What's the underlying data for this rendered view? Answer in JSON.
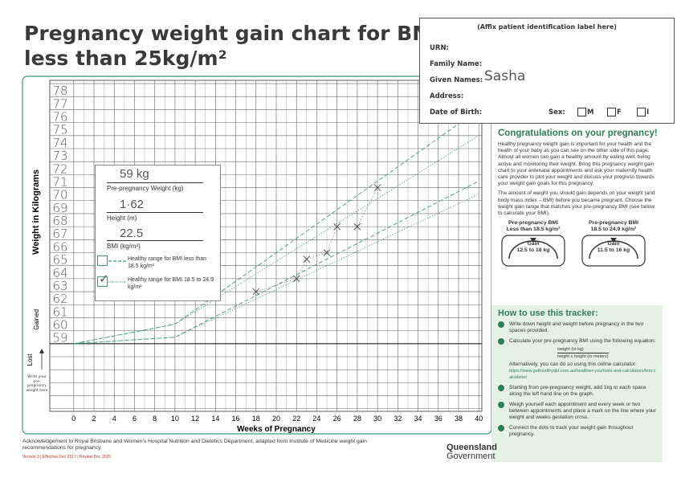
{
  "header": {
    "title_lines": [
      "Pregnancy weight gain chart for BMI",
      "less than 25kg/m²"
    ]
  },
  "patient_label": {
    "heading": "(Affix patient identification label here)",
    "fields": [
      "URN:",
      "Family Name:",
      "Given Names:",
      "Address:",
      "Date of Birth:"
    ],
    "given_name_value": "Sasha",
    "sex_label": "Sex:",
    "sex_options": [
      "M",
      "F",
      "I"
    ]
  },
  "legend_box": {
    "weight_value": "59 kg",
    "weight_label": "Pre-pregnancy Weight (kg)",
    "height_value": "1·62",
    "height_label": "Height (m)",
    "bmi_value": "22.5",
    "bmi_label": "BMI (kg/m²)"
  },
  "chart_data": {
    "type": "line",
    "x_label": "Weeks of Pregnancy",
    "y_label": "Weight in Kilograms",
    "gained_label": "Gained",
    "lost_label": "Lost",
    "write_note": "Write your pre-pregnancy weight here",
    "xlim": [
      -0.3,
      40.3
    ],
    "xticks": [
      0,
      2,
      4,
      6,
      8,
      10,
      12,
      14,
      16,
      18,
      20,
      22,
      24,
      26,
      28,
      30,
      32,
      34,
      36,
      38,
      40
    ],
    "ylim": [
      53.8,
      79.25
    ],
    "yticks": [
      59,
      60,
      61,
      62,
      63,
      64,
      65,
      66,
      67,
      68,
      69,
      70,
      71,
      72,
      73,
      74,
      75,
      76,
      77,
      78
    ],
    "series": [
      {
        "name": "Healthy range for BMI less than 18.5 kg/m²",
        "color": "#3a9a7a",
        "style": "dashed",
        "x": [
          0,
          10,
          40
        ],
        "lower": [
          59,
          59.5,
          71.5
        ],
        "upper": [
          59,
          60.5,
          77
        ]
      },
      {
        "name": "Healthy range for BMI 18.5 to 24.9 kg/m²",
        "color": "#3a9a7a",
        "style": "dotted",
        "x": [
          0,
          10,
          40
        ],
        "lower": [
          59,
          59.5,
          70.5
        ],
        "upper": [
          59,
          60.5,
          75
        ]
      }
    ],
    "checked_series": 1,
    "points": {
      "color": "#555",
      "x": [
        18,
        22,
        23,
        25,
        26,
        28,
        30
      ],
      "values": [
        63,
        64,
        65.5,
        66,
        68,
        68,
        71
      ]
    }
  },
  "congrats": {
    "heading": "Congratulations on your pregnancy!",
    "paragraphs": [
      "Healthy pregnancy weight gain is important for your health and the health of your baby as you can see on the other side of this page. Almost all women can gain a healthy amount by eating well, being active and monitoring their weight. Bring this pregnancy weight gain chart to your antenatal appointments and ask your maternity health care provider to plot your weight and discuss your progress towards your weight gain goals for this pregnancy.",
      "The amount of weight you should gain depends on your weight (and body mass index – BMI) before you became pregnant. Choose the weight gain range that matches your pre-pregnancy BMI (see below to calculate your BMI)."
    ],
    "gauges": [
      {
        "title": "Pre-pregnancy BMI",
        "range": "Less than 18.5 kg/m²",
        "gain_label": "Gain",
        "gain": "12.5 to 18 kg"
      },
      {
        "title": "Pre-pregnancy BMI",
        "range": "18.5 to 24.9 kg/m²",
        "gain_label": "Gain",
        "gain": "11.5 to 16 kg"
      }
    ]
  },
  "howto": {
    "heading": "How to use this tracker:",
    "steps": [
      "Write down height and weight before pregnancy in the two spaces provided.",
      "Calculate your pre-pregnancy BMI using the following equation:",
      "Starting from pre-pregnancy weight, add 1kg to each space along the left hand line on the graph.",
      "Weigh yourself each appointment and every week or two between appointments and place a mark on the line where your weight and weeks gestation cross.",
      "Connect the dots to track your weight gain throughout pregnancy."
    ],
    "formula_top": "weight (in kg)",
    "formula_bottom": "height x height (in meters)",
    "alt_text": "Alternatively, you can do so using this online calculator:",
    "url": "https://www.getheatlhyqld.com.au/healthier-you/tools-and-calculators/bmi-calculator/"
  },
  "footer": {
    "acknowledgement": "Acknowledgement to Royal Brisbane and Women's Hospital Nutrition and Dietetics Department, adapted from Institute of Medicine weight gain recommendations for pregnancy.",
    "version": "Version 3 | Effective Dec 2017 | Review Dec 2020",
    "logo_line1": "Queensland",
    "logo_line2": "Government"
  }
}
